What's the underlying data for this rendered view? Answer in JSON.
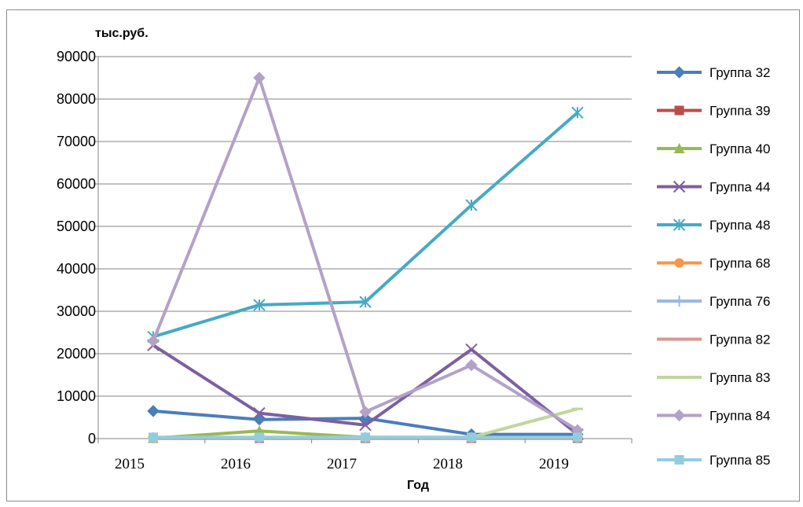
{
  "chart_data": {
    "type": "line",
    "title": "",
    "ylabel": "тыс.руб.",
    "xlabel": "Год",
    "categories": [
      "2015",
      "2016",
      "2017",
      "2018",
      "2019"
    ],
    "y_ticks": [
      "0",
      "10000",
      "20000",
      "30000",
      "40000",
      "50000",
      "60000",
      "70000",
      "80000",
      "90000"
    ],
    "ylim": [
      0,
      90000
    ],
    "grid": "horizontal",
    "legend_position": "right",
    "series": [
      {
        "name": "Группа 32",
        "color": "#4a7ebb",
        "marker": "diamond",
        "values": [
          6500,
          4500,
          4800,
          1000,
          1000
        ]
      },
      {
        "name": "Группа 39",
        "color": "#be4b48",
        "marker": "square",
        "values": [
          100,
          100,
          100,
          100,
          100
        ]
      },
      {
        "name": "Группа 40",
        "color": "#98b954",
        "marker": "triangle",
        "values": [
          100,
          1800,
          300,
          300,
          300
        ]
      },
      {
        "name": "Группа 44",
        "color": "#7d60a0",
        "marker": "x",
        "values": [
          22000,
          6000,
          3200,
          21000,
          1000
        ]
      },
      {
        "name": "Группа 48",
        "color": "#46aac4",
        "marker": "star",
        "values": [
          24000,
          31500,
          32200,
          55000,
          76800
        ]
      },
      {
        "name": "Группа 68",
        "color": "#f69646",
        "marker": "circle",
        "values": [
          200,
          200,
          200,
          200,
          200
        ]
      },
      {
        "name": "Группа 76",
        "color": "#98b9e3",
        "marker": "plus",
        "values": [
          200,
          200,
          200,
          200,
          200
        ]
      },
      {
        "name": "Группа 82",
        "color": "#d99694",
        "marker": "dash",
        "values": [
          200,
          200,
          200,
          200,
          200
        ]
      },
      {
        "name": "Группа 83",
        "color": "#c3d69b",
        "marker": "dash",
        "values": [
          300,
          300,
          300,
          300,
          7000
        ]
      },
      {
        "name": "Группа 84",
        "color": "#b3a2c7",
        "marker": "diamond",
        "values": [
          23000,
          85000,
          6300,
          17300,
          2000
        ]
      },
      {
        "name": "Группа 85",
        "color": "#93cddd",
        "marker": "square",
        "values": [
          300,
          300,
          300,
          300,
          300
        ]
      }
    ]
  }
}
